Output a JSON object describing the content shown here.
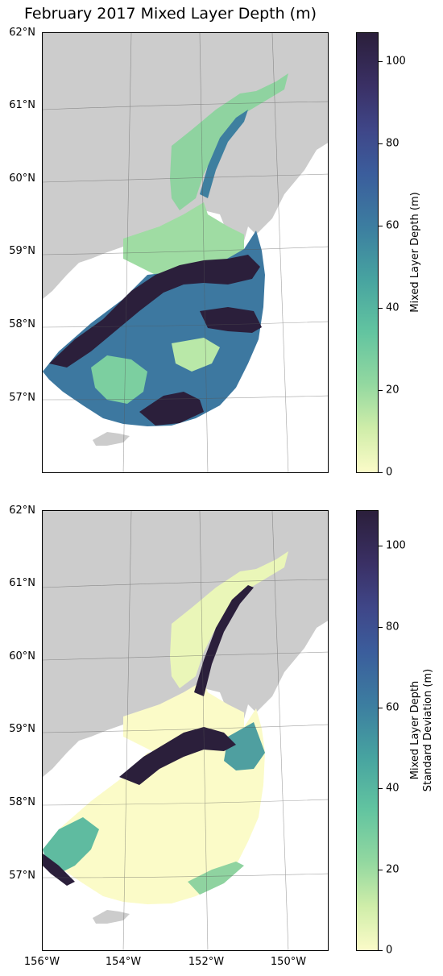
{
  "title": "February 2017 Mixed Layer Depth (m)",
  "latitude_labels": [
    "62°N",
    "61°N",
    "60°N",
    "59°N",
    "58°N",
    "57°N"
  ],
  "longitude_labels": [
    "156°W",
    "154°W",
    "152°W",
    "150°W"
  ],
  "panels": [
    {
      "name": "mixed-layer-depth",
      "colorbar": {
        "label": "Mixed Layer Depth (m)",
        "ticks": [
          "0",
          "20",
          "40",
          "60",
          "80",
          "100"
        ],
        "range": [
          0,
          107
        ]
      }
    },
    {
      "name": "mixed-layer-depth-std",
      "colorbar": {
        "label_line1": "Mixed Layer Depth",
        "label_line2": "Standard Deviation (m)",
        "ticks": [
          "0",
          "20",
          "40",
          "60",
          "80",
          "100"
        ],
        "range": [
          0,
          109
        ]
      }
    }
  ],
  "colors": {
    "land": "#cccccc",
    "colormap_low": "#fbfbc8",
    "colormap_mid": "#47a3a0",
    "colormap_high": "#2b1f3b"
  }
}
